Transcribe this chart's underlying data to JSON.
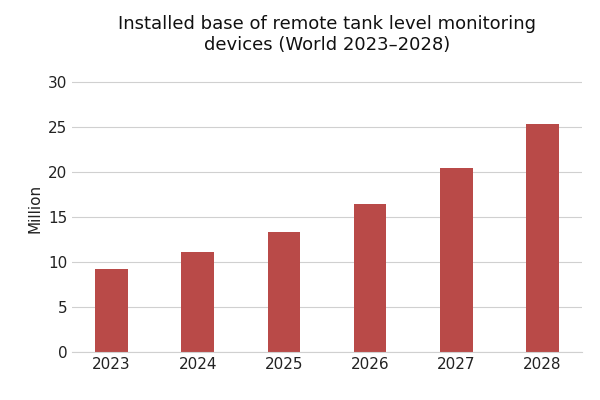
{
  "title": "Installed base of remote tank level monitoring\ndevices (World 2023–2028)",
  "xlabel": "",
  "ylabel": "Million",
  "years": [
    2023,
    2024,
    2025,
    2026,
    2027,
    2028
  ],
  "values": [
    9.2,
    11.1,
    13.3,
    16.4,
    20.4,
    25.3
  ],
  "bar_color": "#b94a48",
  "background_color": "#ffffff",
  "ylim": [
    0,
    32
  ],
  "yticks": [
    0,
    5,
    10,
    15,
    20,
    25,
    30
  ],
  "grid_color": "#d0d0d0",
  "title_fontsize": 13,
  "axis_label_fontsize": 11,
  "tick_fontsize": 11,
  "bar_width": 0.38
}
